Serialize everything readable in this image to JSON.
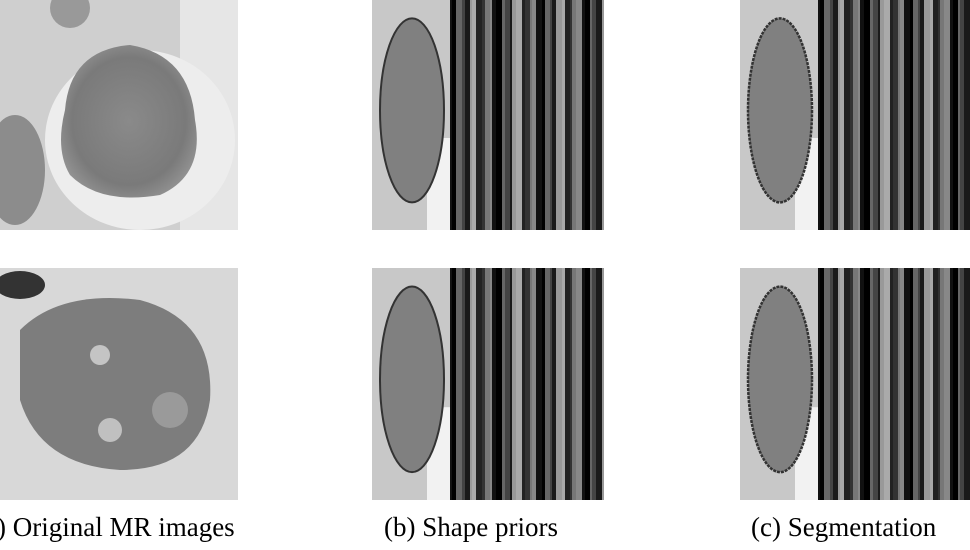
{
  "captions": [
    "(a) Original MR images",
    "(b) Shape priors",
    "(c) Segmentation"
  ]
}
